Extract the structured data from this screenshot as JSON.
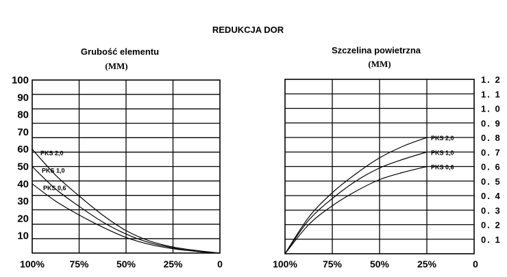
{
  "title": "REDUKCJA DOR",
  "chart_data": [
    {
      "type": "line",
      "title": "Grubość elementu",
      "unit": "(MM)",
      "x_categories": [
        "100%",
        "75%",
        "50%",
        "25%",
        "0"
      ],
      "x_domain": [
        100,
        0
      ],
      "ylim": [
        0,
        100
      ],
      "y_ticks": [
        "10",
        "20",
        "30",
        "40",
        "50",
        "60",
        "70",
        "80",
        "90",
        "100"
      ],
      "y_ticks_side": "left",
      "grid": true,
      "series": [
        {
          "name": "PKS 2,0",
          "x": [
            100,
            87.5,
            75,
            62.5,
            50,
            37.5,
            25,
            12.5,
            0
          ],
          "y": [
            60,
            45,
            33,
            22,
            13,
            7,
            3.5,
            1.5,
            0
          ]
        },
        {
          "name": "PKS 1,0",
          "x": [
            100,
            87.5,
            75,
            62.5,
            50,
            37.5,
            25,
            12.5,
            0
          ],
          "y": [
            50,
            37,
            27,
            18,
            11,
            6,
            3,
            1,
            0
          ]
        },
        {
          "name": "PKS 0,6",
          "x": [
            100,
            87.5,
            75,
            62.5,
            50,
            37.5,
            25,
            12.5,
            0
          ],
          "y": [
            40,
            30,
            22,
            15,
            9,
            5,
            2.5,
            1,
            0
          ]
        }
      ]
    },
    {
      "type": "line",
      "title": "Szczelina powietrzna",
      "unit": "(MM)",
      "x_categories": [
        "100%",
        "75%",
        "50%",
        "25%",
        "0"
      ],
      "x_domain": [
        100,
        0
      ],
      "ylim": [
        0,
        1.2
      ],
      "y_ticks": [
        "0. 1",
        "0. 2",
        "0. 3",
        "0. 4",
        "0. 5",
        "0. 6",
        "0. 7",
        "0. 8",
        "0. 9",
        "1. 0",
        "1. 1",
        "1. 2"
      ],
      "y_ticks_side": "right",
      "grid": true,
      "series": [
        {
          "name": "PKS 2,0",
          "x": [
            100,
            87.5,
            75,
            62.5,
            50,
            37.5,
            25
          ],
          "y": [
            0,
            0.25,
            0.42,
            0.55,
            0.66,
            0.74,
            0.8
          ]
        },
        {
          "name": "PKS 1,0",
          "x": [
            100,
            87.5,
            75,
            62.5,
            50,
            37.5,
            25
          ],
          "y": [
            0,
            0.23,
            0.38,
            0.5,
            0.59,
            0.65,
            0.7
          ]
        },
        {
          "name": "PKS 0,6",
          "x": [
            100,
            87.5,
            75,
            62.5,
            50,
            37.5,
            25
          ],
          "y": [
            0,
            0.2,
            0.33,
            0.43,
            0.51,
            0.56,
            0.6
          ]
        }
      ]
    }
  ]
}
